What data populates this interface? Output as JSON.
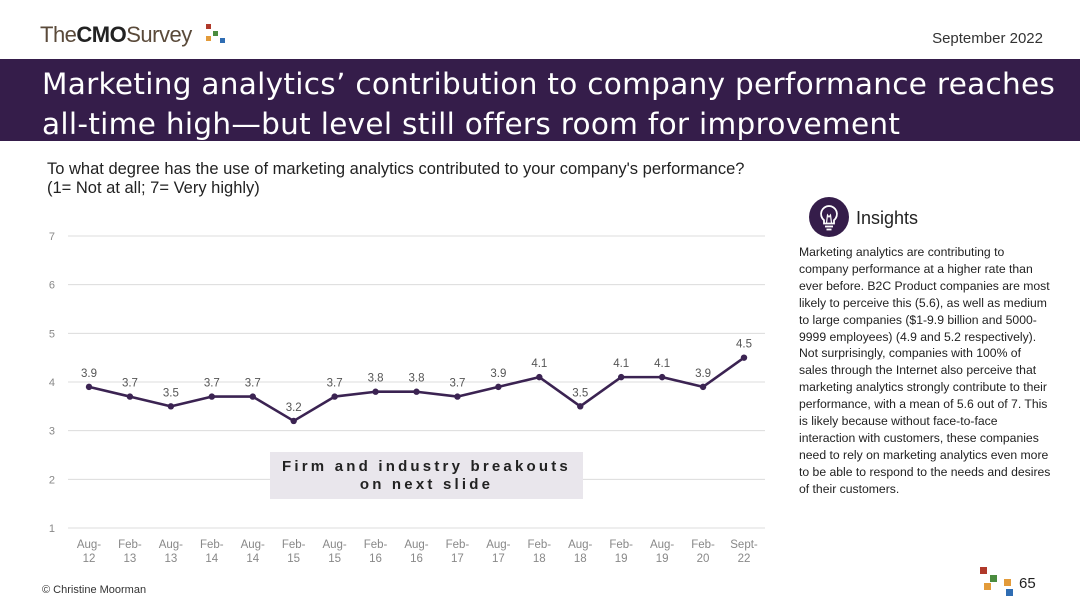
{
  "header": {
    "logo_prefix": "The",
    "logo_bold": "CMO",
    "logo_suffix": "Survey",
    "date": "September 2022"
  },
  "title": "Marketing analytics’ contribution to company performance reaches all-time high—but level still offers room for improvement",
  "question_line1": "To what degree has the use of marketing analytics contributed to your company's performance?",
  "question_line2": "(1= Not at all; 7= Very highly)",
  "insights": {
    "title": "Insights",
    "icon": "lightbulb-icon",
    "text": "Marketing analytics are contributing to company performance at a higher rate than ever before. B2C Product companies are most likely to perceive this (5.6), as well as medium to large companies ($1-9.9 billion and 5000-9999 employees) (4.9 and 5.2 respectively). Not surprisingly, companies with 100% of sales through the Internet also perceive that marketing analytics strongly contribute to their performance, with a mean of 5.6 out of 7. This is likely because without face-to-face interaction with customers, these companies need to rely on marketing analytics even more to be able to respond to the needs and desires of their customers."
  },
  "breakout_note": "Firm and industry breakouts on next slide",
  "footer": {
    "copyright": "© Christine Moorman",
    "page": "65"
  },
  "colors": {
    "brand_purple": "#351d4a",
    "line": "#3b2352",
    "note_bg": "#e9e6ec",
    "logo_dot_red": "#b0392a",
    "logo_dot_green": "#4a8c3f",
    "logo_dot_orange": "#e39b3a",
    "logo_dot_blue": "#2f6db3"
  },
  "chart_data": {
    "type": "line",
    "categories": [
      "Aug-\n12",
      "Feb-\n13",
      "Aug-\n13",
      "Feb-\n14",
      "Aug-\n14",
      "Feb-\n15",
      "Aug-\n15",
      "Feb-\n16",
      "Aug-\n16",
      "Feb-\n17",
      "Aug-\n17",
      "Feb-\n18",
      "Aug-\n18",
      "Feb-\n19",
      "Aug-\n19",
      "Feb-\n20",
      "Sept-\n22"
    ],
    "values": [
      3.9,
      3.7,
      3.5,
      3.7,
      3.7,
      3.2,
      3.7,
      3.8,
      3.8,
      3.7,
      3.9,
      4.1,
      3.5,
      4.1,
      4.1,
      3.9,
      4.5
    ],
    "y_ticks": [
      1,
      2,
      3,
      4,
      5,
      6,
      7
    ],
    "ylim": [
      1,
      7
    ],
    "grid": true,
    "data_labels": true
  }
}
